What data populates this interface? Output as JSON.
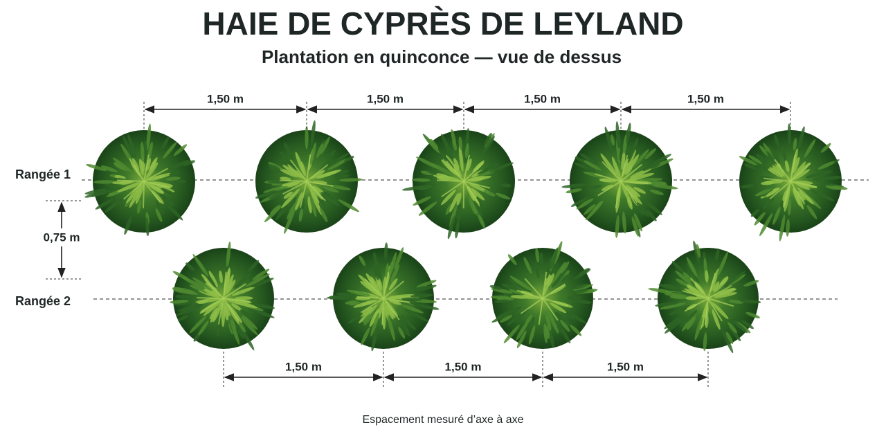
{
  "header": {
    "title": "HAIE DE CYPRÈS DE LEYLAND",
    "subtitle": "Plantation en quinconce — vue de dessus"
  },
  "rows": [
    {
      "label": "Rangée 1",
      "spacings": [
        "1,50 m",
        "1,50 m",
        "1,50 m",
        "1,50 m"
      ]
    },
    {
      "label": "Rangée 2",
      "spacings": [
        "1,50 m",
        "1,50 m",
        "1,50 m"
      ]
    }
  ],
  "row_gap": "0,75 m",
  "footnote": "Espacement mesuré d’axe à axe"
}
